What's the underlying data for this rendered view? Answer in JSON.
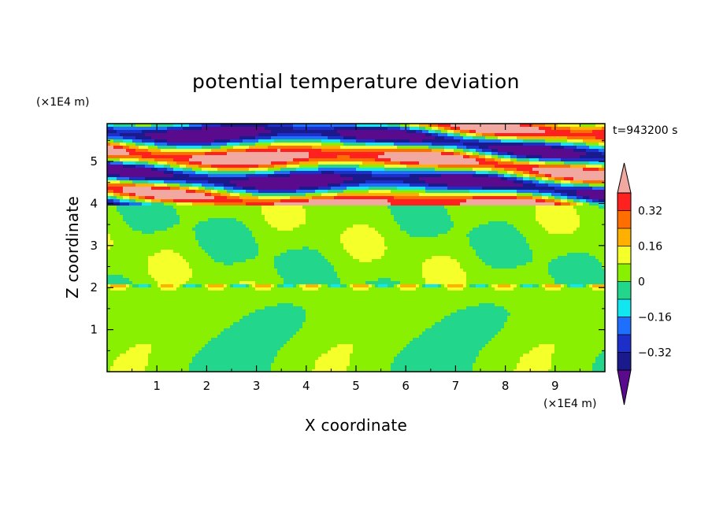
{
  "chart_data": {
    "type": "heatmap",
    "title": "potential temperature deviation",
    "xlabel": "X coordinate",
    "ylabel": "Z coordinate",
    "x_unit": "(×1E4 m)",
    "y_unit": "(×1E4 m)",
    "time_label": "t=943200 s",
    "xlim": [
      0,
      10
    ],
    "ylim": [
      0,
      5.9
    ],
    "x_ticks": [
      "1",
      "2",
      "3",
      "4",
      "5",
      "6",
      "7",
      "8",
      "9"
    ],
    "y_ticks": [
      "1",
      "2",
      "3",
      "4",
      "5"
    ],
    "colorbar": {
      "levels": [
        -0.48,
        -0.4,
        -0.32,
        -0.24,
        -0.16,
        -0.08,
        0,
        0.08,
        0.16,
        0.24,
        0.32,
        0.4,
        0.48
      ],
      "colors": [
        "#5a0a8c",
        "#1a1a8c",
        "#1c2fc8",
        "#1f6fff",
        "#12e6f0",
        "#22d68c",
        "#88f000",
        "#f5ff2a",
        "#ffb000",
        "#ff6e00",
        "#ff2020",
        "#f0a8a0"
      ],
      "tick_labels": [
        "0.32",
        "0.16",
        "0",
        "−0.16",
        "−0.32"
      ],
      "tick_values": [
        0.32,
        0.16,
        0,
        -0.16,
        -0.32
      ],
      "extend": "both"
    }
  }
}
